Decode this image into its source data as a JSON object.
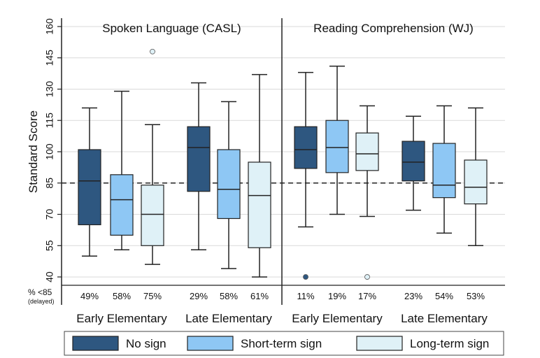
{
  "chart_data": {
    "type": "boxplot",
    "ylabel": "Standard Score",
    "ylim": [
      36,
      164
    ],
    "yticks": [
      40,
      55,
      70,
      85,
      100,
      115,
      130,
      145,
      160
    ],
    "reference_line": 85,
    "panels": [
      {
        "title": "Spoken Language (CASL)",
        "groups": [
          {
            "label": "Early Elementary",
            "boxes": [
              {
                "series": "No sign",
                "whisker_low": 50,
                "q1": 65,
                "median": 86,
                "q3": 101,
                "whisker_high": 121,
                "outliers": [],
                "pct_below_85": "49%"
              },
              {
                "series": "Short-term sign",
                "whisker_low": 53,
                "q1": 60,
                "median": 77,
                "q3": 89,
                "whisker_high": 129,
                "outliers": [],
                "pct_below_85": "58%"
              },
              {
                "series": "Long-term sign",
                "whisker_low": 46,
                "q1": 55,
                "median": 70,
                "q3": 84,
                "whisker_high": 113,
                "outliers": [
                  148
                ],
                "pct_below_85": "75%"
              }
            ]
          },
          {
            "label": "Late Elementary",
            "boxes": [
              {
                "series": "No sign",
                "whisker_low": 53,
                "q1": 81,
                "median": 102,
                "q3": 112,
                "whisker_high": 133,
                "outliers": [],
                "pct_below_85": "29%"
              },
              {
                "series": "Short-term sign",
                "whisker_low": 44,
                "q1": 68,
                "median": 82,
                "q3": 101,
                "whisker_high": 124,
                "outliers": [],
                "pct_below_85": "58%"
              },
              {
                "series": "Long-term sign",
                "whisker_low": 40,
                "q1": 54,
                "median": 79,
                "q3": 95,
                "whisker_high": 137,
                "outliers": [],
                "pct_below_85": "61%"
              }
            ]
          }
        ]
      },
      {
        "title": "Reading Comprehension (WJ)",
        "groups": [
          {
            "label": "Early Elementary",
            "boxes": [
              {
                "series": "No sign",
                "whisker_low": 64,
                "q1": 92,
                "median": 101,
                "q3": 112,
                "whisker_high": 138,
                "outliers": [
                  40
                ],
                "pct_below_85": "11%"
              },
              {
                "series": "Short-term sign",
                "whisker_low": 70,
                "q1": 90,
                "median": 102,
                "q3": 115,
                "whisker_high": 141,
                "outliers": [],
                "pct_below_85": "19%"
              },
              {
                "series": "Long-term sign",
                "whisker_low": 69,
                "q1": 91,
                "median": 99,
                "q3": 109,
                "whisker_high": 122,
                "outliers": [
                  40
                ],
                "pct_below_85": "17%"
              }
            ]
          },
          {
            "label": "Late Elementary",
            "boxes": [
              {
                "series": "No sign",
                "whisker_low": 72,
                "q1": 86,
                "median": 95,
                "q3": 105,
                "whisker_high": 117,
                "outliers": [],
                "pct_below_85": "23%"
              },
              {
                "series": "Short-term sign",
                "whisker_low": 61,
                "q1": 78,
                "median": 84,
                "q3": 104,
                "whisker_high": 122,
                "outliers": [],
                "pct_below_85": "54%"
              },
              {
                "series": "Long-term sign",
                "whisker_low": 55,
                "q1": 75,
                "median": 83,
                "q3": 96,
                "whisker_high": 121,
                "outliers": [],
                "pct_below_85": "53%"
              }
            ]
          }
        ]
      }
    ],
    "pct_row_label": "% <85",
    "pct_row_sublabel": "(delayed)",
    "legend": [
      {
        "name": "No sign",
        "color": "#2e5780"
      },
      {
        "name": "Short-term sign",
        "color": "#8ec7f4"
      },
      {
        "name": "Long-term sign",
        "color": "#dff1f7"
      }
    ],
    "grid": true,
    "legend_position": "bottom"
  }
}
